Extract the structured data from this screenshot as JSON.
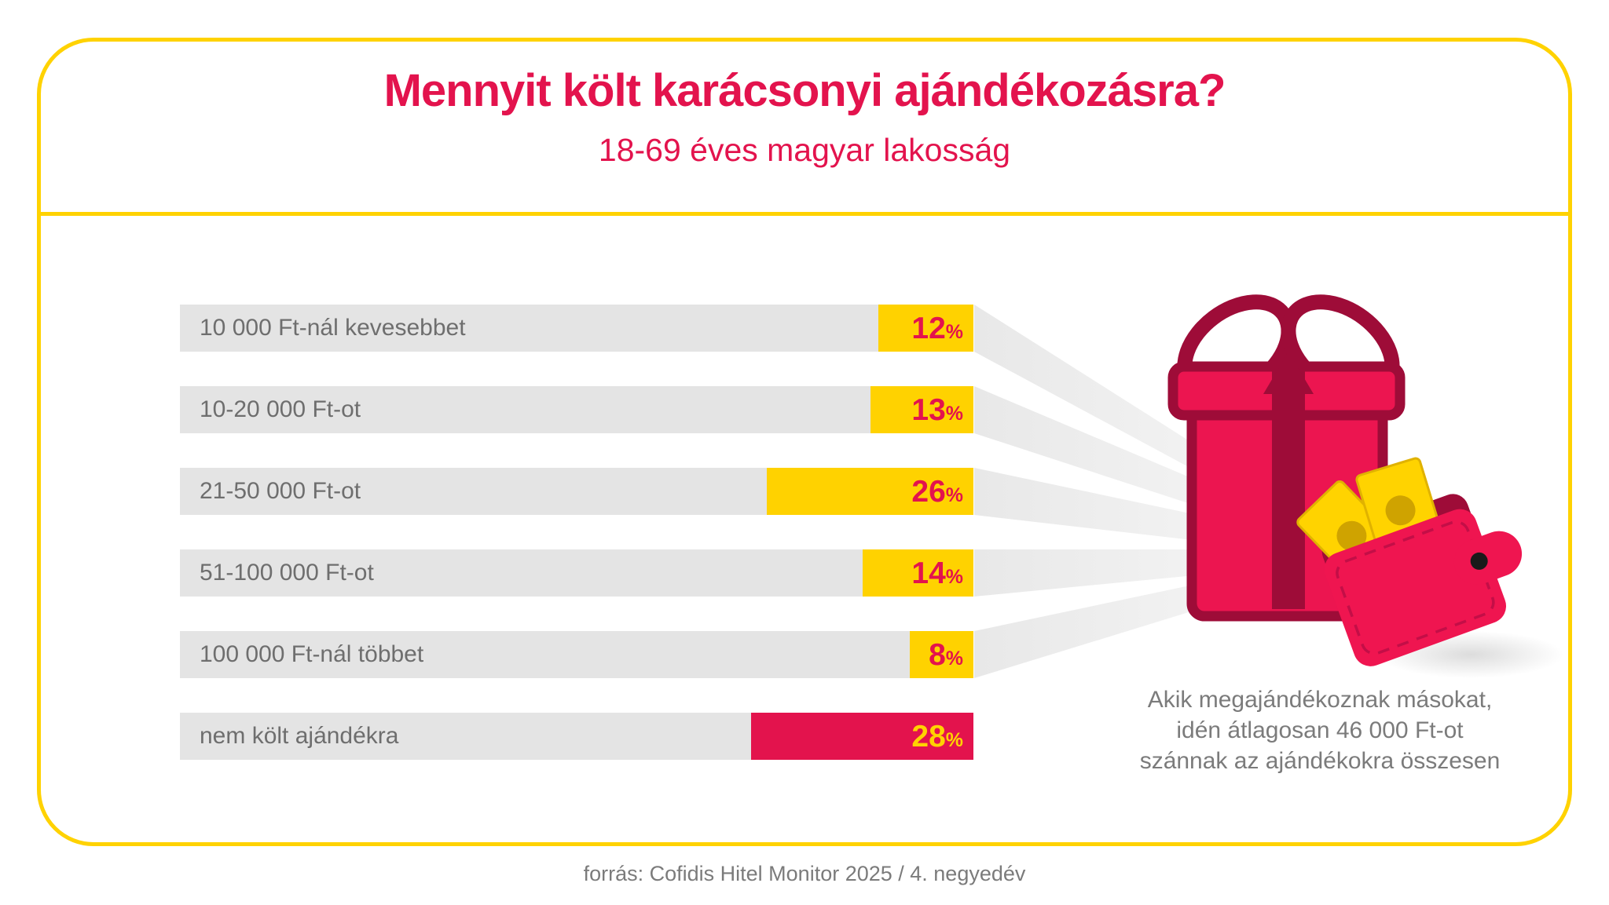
{
  "header": {
    "title": "Mennyit költ karácsonyi ajándékozásra?",
    "subtitle": "18-69 éves magyar lakosság"
  },
  "chart_data": {
    "type": "bar",
    "orientation": "horizontal",
    "unit": "%",
    "categories": [
      "10 000 Ft-nál kevesebbet",
      "10-20 000 Ft-ot",
      "21-50 000 Ft-ot",
      "51-100 000 Ft-ot",
      "100 000 Ft-nál többet",
      "nem költ ajándékra"
    ],
    "values": [
      12,
      13,
      26,
      14,
      8,
      28
    ],
    "xlim": [
      0,
      100
    ],
    "highlight_index": 5,
    "legend_position": "none",
    "grid": false,
    "colors": {
      "bar_track": "#E4E4E4",
      "bar_fill": "#FFD200",
      "bar_fill_highlight": "#E3134D",
      "value_text": "#E3134D",
      "value_text_highlight": "#FFD200"
    }
  },
  "aside": {
    "lines": [
      "Akik megajándékoznak másokat,",
      "idén átlagosan 46 000 Ft-ot",
      "szánnak az ajándékokra összesen"
    ]
  },
  "footer": {
    "source": "forrás: Cofidis Hitel Monitor 2025 / 4. negyedév"
  },
  "colors": {
    "accent_yellow": "#FFD200",
    "accent_crimson": "#E3134D",
    "gift_pink": "#EC1550",
    "gift_maroon": "#9E0C38",
    "text_gray": "#6E6E6E"
  }
}
